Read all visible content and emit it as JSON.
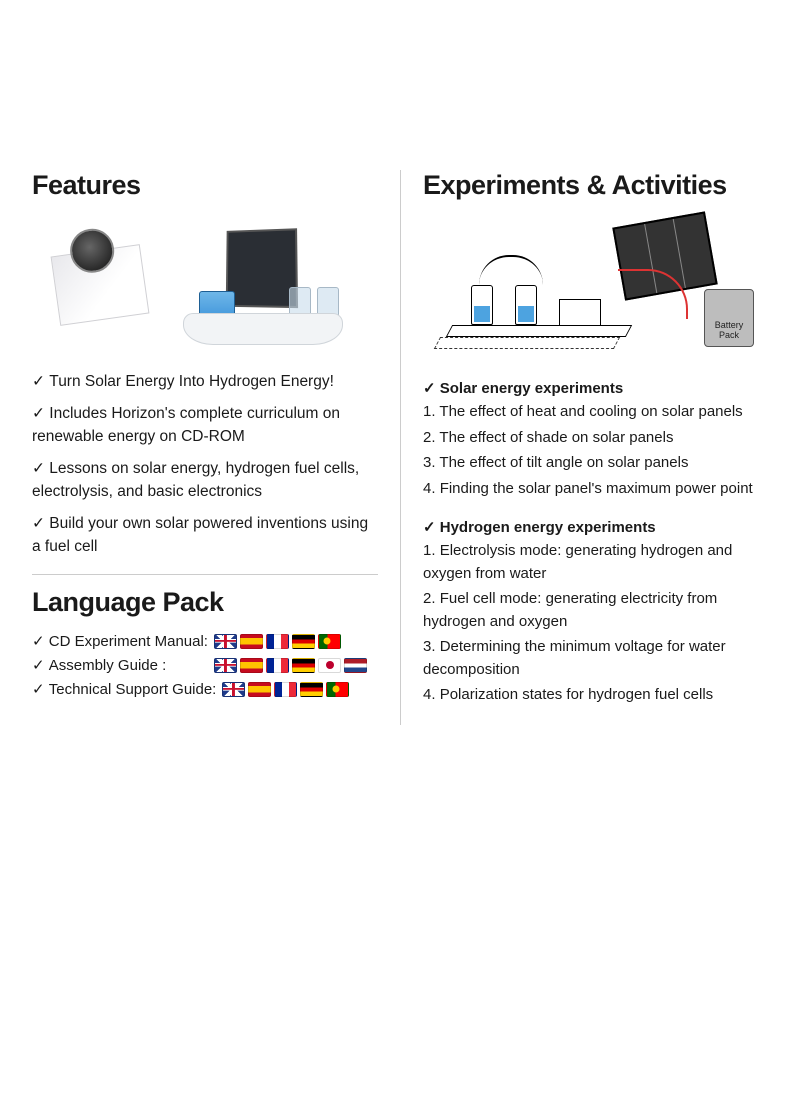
{
  "colors": {
    "text": "#1a1a1a",
    "rule": "#cccccc",
    "bg": "#ffffff",
    "accent_blue": "#2d88d6",
    "wire_red": "#d33333"
  },
  "left": {
    "features_heading": "Features",
    "features": [
      "Turn Solar Energy Into Hydrogen Energy!",
      "Includes Horizon's complete curriculum on renewable energy on CD-ROM",
      "Lessons on solar energy, hydrogen fuel cells, electrolysis, and basic electronics",
      "Build your own solar powered inventions using a fuel cell"
    ],
    "language_heading": "Language Pack",
    "lang_rows": [
      {
        "label": "CD Experiment Manual:",
        "flags": [
          "uk",
          "es",
          "fr",
          "de",
          "pt"
        ]
      },
      {
        "label": "Assembly Guide :",
        "flags": [
          "uk",
          "es",
          "fr",
          "de",
          "jp",
          "nl"
        ]
      },
      {
        "label": "Technical Support Guide:",
        "flags": [
          "uk",
          "es",
          "fr",
          "de",
          "pt"
        ]
      }
    ]
  },
  "right": {
    "heading": "Experiments & Activities",
    "battery_label": "Battery Pack",
    "sections": [
      {
        "title": "Solar energy experiments",
        "items": [
          "The effect of heat and cooling on solar panels",
          "The effect of shade on solar panels",
          "The effect of tilt angle on solar panels",
          "Finding the solar panel's maximum power point"
        ]
      },
      {
        "title": "Hydrogen energy experiments",
        "items": [
          "Electrolysis mode: generating hydrogen and oxygen from water",
          "Fuel cell mode: generating electricity from hydrogen and oxygen",
          "Determining the minimum voltage for water decomposition",
          "Polarization states for hydrogen fuel cells"
        ]
      }
    ]
  }
}
